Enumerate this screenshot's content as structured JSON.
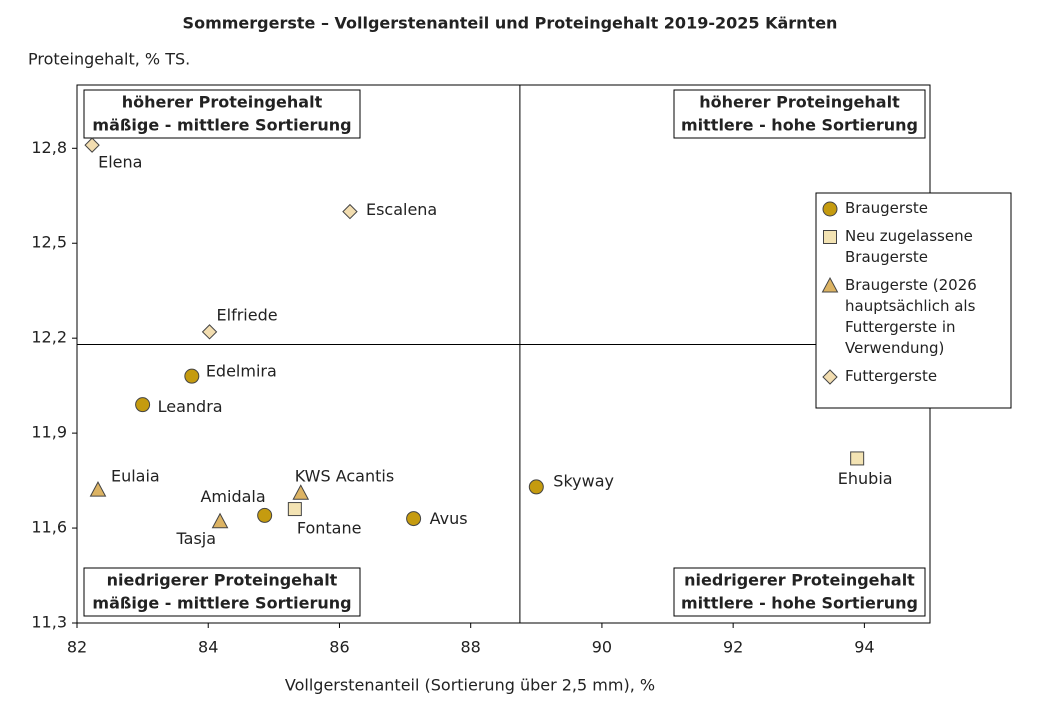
{
  "chart_data": {
    "type": "scatter",
    "title": "Sommergerste – Vollgerstenanteil und Proteingehalt 2019-2025 Kärnten",
    "y_label": "Proteingehalt, % TS.",
    "x_label": "Vollgerstenanteil (Sortierung über 2,5 mm), %",
    "xlim": [
      82,
      95
    ],
    "xticks": [
      82,
      84,
      86,
      88,
      90,
      92,
      94
    ],
    "ylim": [
      11.3,
      13.0
    ],
    "yticks": [
      {
        "value": 11.3,
        "label": "11,3"
      },
      {
        "value": 11.6,
        "label": "11,6"
      },
      {
        "value": 11.9,
        "label": "11,9"
      },
      {
        "value": 12.2,
        "label": "12,2"
      },
      {
        "value": 12.5,
        "label": "12,5"
      },
      {
        "value": 12.8,
        "label": "12,8"
      }
    ],
    "quadrant_x": 88.75,
    "quadrant_y": 12.18,
    "quadrant_labels": [
      [
        "höherer Proteingehalt",
        "mäßige - mittlere Sortierung"
      ],
      [
        "höherer Proteingehalt",
        "mittlere - hohe Sortierung"
      ],
      [
        "niedrigerer Proteingehalt",
        "mäßige - mittlere Sortierung"
      ],
      [
        "niedrigerer Proteingehalt",
        "mittlere - hohe Sortierung"
      ]
    ],
    "series": [
      {
        "name": "Braugerste",
        "color": "#c59b0f",
        "marker": "circle",
        "labels": [
          "Edelmira",
          "Leandra",
          "Amidala",
          "Avus",
          "Skyway"
        ],
        "x": [
          83.75,
          83.0,
          84.86,
          87.13,
          89.0
        ],
        "y": [
          12.08,
          11.99,
          11.64,
          11.63,
          11.73
        ]
      },
      {
        "name": "Neu zugelassene Braugerste",
        "color": "#f3e3b3",
        "marker": "square",
        "labels": [
          "Fontane",
          "Ehubia"
        ],
        "x": [
          85.32,
          93.89
        ],
        "y": [
          11.66,
          11.82
        ]
      },
      {
        "name": "Braugerste (2026 hauptsächlich als Futtergerste in Verwendung)",
        "color": "#dcb363",
        "marker": "triangle",
        "labels": [
          "Eulaia",
          "Tasja",
          "KWS Acantis"
        ],
        "x": [
          82.32,
          84.18,
          85.41
        ],
        "y": [
          11.72,
          11.62,
          11.71
        ]
      },
      {
        "name": "Futtergerste",
        "color": "#f2ddb0",
        "marker": "diamond",
        "labels": [
          "Elena",
          "Escalena",
          "Elfriede"
        ],
        "x": [
          82.23,
          86.16,
          84.02
        ],
        "y": [
          12.81,
          12.6,
          12.22
        ]
      }
    ]
  }
}
